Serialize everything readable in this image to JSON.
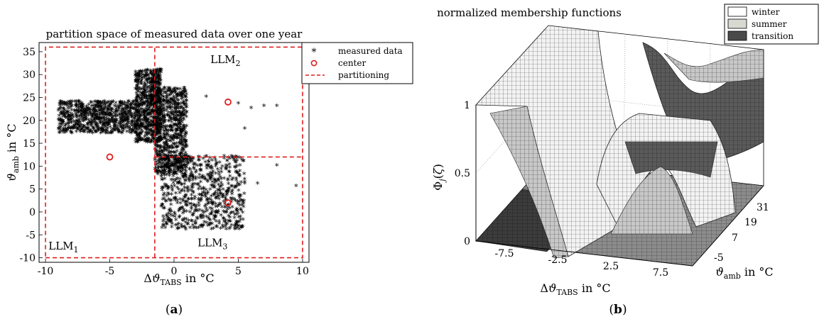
{
  "chart_data": [
    {
      "type": "scatter",
      "panel_label": "(a)",
      "title": "partition space of measured data over one year",
      "xlabel": "Δϑ_TABS in °C",
      "ylabel": "ϑ_amb in °C",
      "xlim": [
        -10.5,
        10.5
      ],
      "ylim": [
        -11,
        37
      ],
      "xticks": [
        -10,
        -5,
        0,
        5,
        10
      ],
      "yticks": [
        -10,
        -5,
        0,
        5,
        10,
        15,
        20,
        25,
        30,
        35
      ],
      "grid": false,
      "legend_position": "top-right",
      "legend": [
        "measured data",
        "center",
        "partitioning"
      ],
      "centers": [
        {
          "x": -5.0,
          "y": 12.0
        },
        {
          "x": 4.2,
          "y": 24.0
        },
        {
          "x": 4.2,
          "y": 2.0
        }
      ],
      "partitioning_lines": [
        {
          "x": [
            -10,
            10,
            10,
            -10,
            -10
          ],
          "y": [
            -10,
            -10,
            36,
            36,
            -10
          ]
        },
        {
          "x": [
            -1.5,
            -1.5
          ],
          "y": [
            -10,
            36
          ]
        },
        {
          "x": [
            -1.5,
            10
          ],
          "y": [
            12,
            12
          ]
        }
      ],
      "region_labels": [
        {
          "text": "LLM",
          "sub": "1",
          "x": -8.6,
          "y": -8.2
        },
        {
          "text": "LLM",
          "sub": "2",
          "x": 4.0,
          "y": 32.5
        },
        {
          "text": "LLM",
          "sub": "3",
          "x": 3.0,
          "y": -7.5
        }
      ],
      "measured_data_clusters": [
        {
          "x_range": [
            -3.0,
            -1.0
          ],
          "y_range": [
            15,
            31
          ]
        },
        {
          "x_range": [
            -1.5,
            1.0
          ],
          "y_range": [
            8,
            27
          ]
        },
        {
          "x_range": [
            -1.0,
            5.5
          ],
          "y_range": [
            -4,
            12
          ]
        },
        {
          "x_range": [
            -9.0,
            -3.0
          ],
          "y_range": [
            17,
            24
          ]
        }
      ],
      "measured_data_outliers": [
        {
          "x": -9.0,
          "y": 22.0
        },
        {
          "x": -8.0,
          "y": 23.0
        },
        {
          "x": -7.2,
          "y": 21.0
        },
        {
          "x": 2.5,
          "y": 25.0
        },
        {
          "x": 5.0,
          "y": 23.5
        },
        {
          "x": 6.0,
          "y": 22.5
        },
        {
          "x": 7.0,
          "y": 23.0
        },
        {
          "x": 8.0,
          "y": 23.0
        },
        {
          "x": 9.5,
          "y": 5.5
        },
        {
          "x": 8.0,
          "y": 10.0
        },
        {
          "x": 6.5,
          "y": 6.0
        },
        {
          "x": 5.5,
          "y": 18.0
        }
      ]
    },
    {
      "type": "surface",
      "panel_label": "(b)",
      "title": "normalized membership functions",
      "xlabel": "Δϑ_TABS in °C",
      "ylabel": "ϑ_amb in °C",
      "zlabel": "Φ_j(ζ)",
      "xticks": [
        -7.5,
        -2.5,
        2.5,
        7.5
      ],
      "yticks": [
        -5,
        7,
        19,
        31
      ],
      "zticks": [
        0,
        0.5,
        1
      ],
      "legend_position": "top-right",
      "series": [
        {
          "name": "winter",
          "color": "#ffffff"
        },
        {
          "name": "summer",
          "color": "#d9d9d2"
        },
        {
          "name": "transition",
          "color": "#4a4a4a"
        }
      ]
    }
  ]
}
